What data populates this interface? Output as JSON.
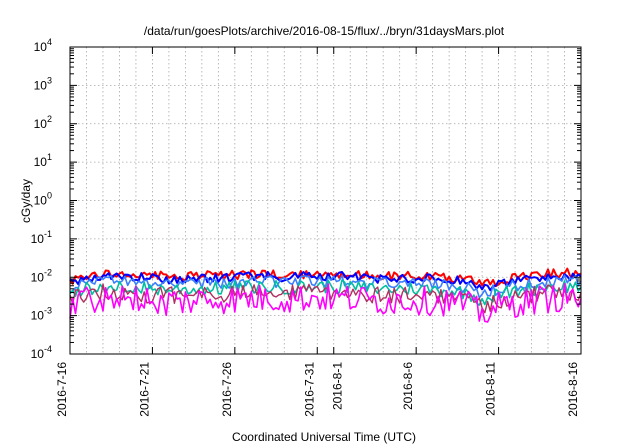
{
  "chart_data": {
    "type": "line",
    "title": "/data/run/goesPlots/archive/2016-08-15/flux/../bryn/31daysMars.plot",
    "xlabel": "Coordinated Universal Time (UTC)",
    "ylabel": "cGy/day",
    "yscale": "log",
    "ylim": [
      0.0001,
      10000
    ],
    "xlim": [
      "2016-07-16",
      "2016-08-16"
    ],
    "grid": true,
    "y_ticks": [
      {
        "base": "10",
        "exp": "4"
      },
      {
        "base": "10",
        "exp": "3"
      },
      {
        "base": "10",
        "exp": "2"
      },
      {
        "base": "10",
        "exp": "1"
      },
      {
        "base": "10",
        "exp": "0"
      },
      {
        "base": "10",
        "exp": "-1"
      },
      {
        "base": "10",
        "exp": "-2"
      },
      {
        "base": "10",
        "exp": "-3"
      },
      {
        "base": "10",
        "exp": "-4"
      }
    ],
    "x_ticks": [
      "2016-7-16",
      "2016-7-21",
      "2016-7-26",
      "2016-7-31",
      "2016-8-1",
      "2016-8-6",
      "2016-8-11",
      "2016-8-16"
    ],
    "series": [
      {
        "color": "#ff0000",
        "width": 2.0,
        "jitter": 0.12,
        "values": [
          0.0085,
          0.011,
          0.013,
          0.012,
          0.0115,
          0.011,
          0.0105,
          0.0105,
          0.011,
          0.011,
          0.0115,
          0.012,
          0.012,
          0.0115,
          0.012,
          0.013,
          0.0125,
          0.012,
          0.011,
          0.0105,
          0.011,
          0.011,
          0.0105,
          0.01,
          0.009,
          0.0065,
          0.008,
          0.0095,
          0.011,
          0.0125,
          0.013,
          0.0125
        ]
      },
      {
        "color": "#0000ff",
        "width": 2.0,
        "jitter": 0.12,
        "values": [
          0.0075,
          0.0095,
          0.0105,
          0.0105,
          0.01,
          0.0095,
          0.009,
          0.009,
          0.0095,
          0.0095,
          0.01,
          0.0105,
          0.0105,
          0.01,
          0.0105,
          0.011,
          0.0105,
          0.0105,
          0.0095,
          0.009,
          0.0095,
          0.0095,
          0.009,
          0.0085,
          0.0075,
          0.0052,
          0.0068,
          0.008,
          0.0095,
          0.0105,
          0.011,
          0.0105
        ]
      },
      {
        "color": "#3a7fff",
        "width": 1.6,
        "jitter": 0.15,
        "values": [
          0.0055,
          0.0072,
          0.008,
          0.0078,
          0.0074,
          0.007,
          0.0068,
          0.0068,
          0.007,
          0.0071,
          0.0074,
          0.0078,
          0.0078,
          0.0075,
          0.0078,
          0.0082,
          0.0079,
          0.0077,
          0.0071,
          0.0068,
          0.007,
          0.007,
          0.0067,
          0.0063,
          0.0056,
          0.0038,
          0.005,
          0.006,
          0.007,
          0.0078,
          0.0082,
          0.0078
        ]
      },
      {
        "color": "#00bfa0",
        "width": 1.6,
        "jitter": 0.18,
        "values": [
          0.004,
          0.0052,
          0.0058,
          0.0056,
          0.0053,
          0.005,
          0.0049,
          0.0049,
          0.005,
          0.0051,
          0.0053,
          0.0056,
          0.0056,
          0.0054,
          0.0056,
          0.0059,
          0.0057,
          0.0055,
          0.0051,
          0.0049,
          0.005,
          0.005,
          0.0048,
          0.0045,
          0.004,
          0.0026,
          0.0036,
          0.0043,
          0.005,
          0.0056,
          0.0059,
          0.0056
        ]
      },
      {
        "color": "#b03060",
        "width": 1.4,
        "jitter": 0.22,
        "values": [
          0.0028,
          0.0036,
          0.004,
          0.0039,
          0.0037,
          0.0035,
          0.0034,
          0.0034,
          0.0035,
          0.0036,
          0.0037,
          0.0039,
          0.0039,
          0.0038,
          0.0039,
          0.0041,
          0.004,
          0.0039,
          0.0036,
          0.0034,
          0.0035,
          0.0035,
          0.0034,
          0.0032,
          0.0028,
          0.0018,
          0.0025,
          0.003,
          0.0035,
          0.0039,
          0.0041,
          0.0039
        ]
      },
      {
        "color": "#ff00ff",
        "width": 1.6,
        "jitter": 0.38,
        "values": [
          0.002,
          0.0026,
          0.0029,
          0.0028,
          0.0027,
          0.0025,
          0.0024,
          0.0024,
          0.0025,
          0.0026,
          0.0027,
          0.0028,
          0.0028,
          0.0027,
          0.0028,
          0.003,
          0.0029,
          0.0028,
          0.0026,
          0.0024,
          0.0025,
          0.0025,
          0.0024,
          0.0023,
          0.002,
          0.0011,
          0.0017,
          0.0021,
          0.0025,
          0.0028,
          0.003,
          0.0028
        ]
      }
    ]
  }
}
